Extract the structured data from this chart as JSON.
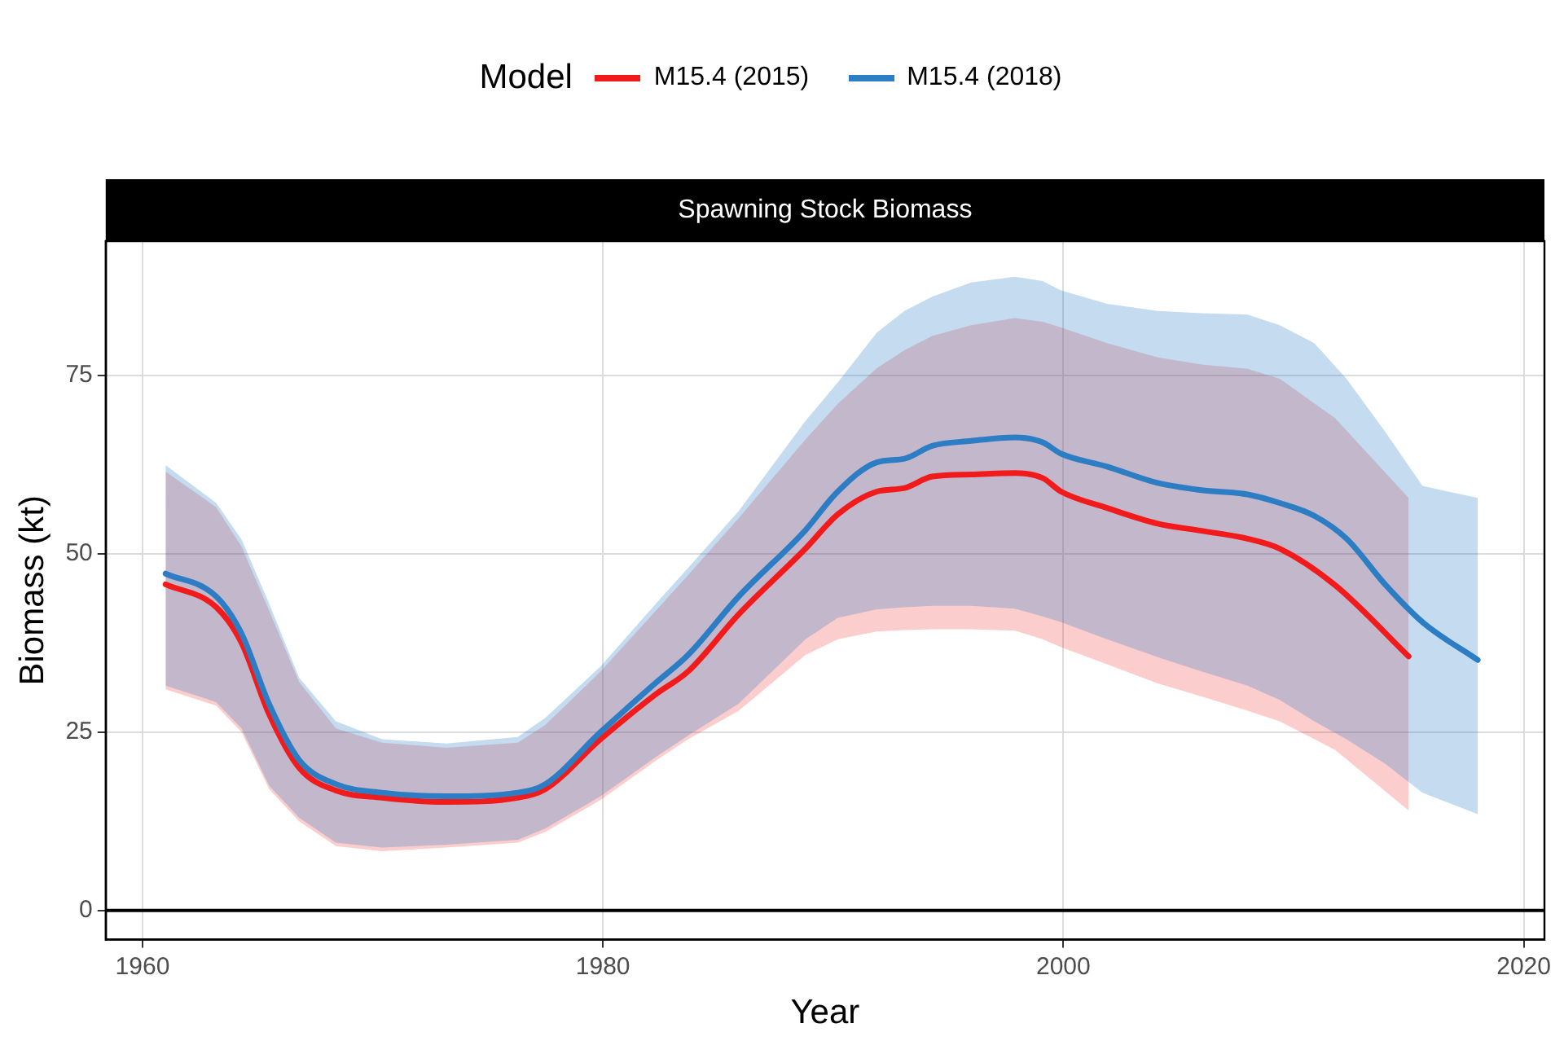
{
  "chart_data": {
    "type": "line",
    "title": "Spawning Stock Biomass",
    "xlabel": "Year",
    "ylabel": "Biomass (kt)",
    "legend_title": "Model",
    "legend": "top",
    "xlim": [
      1958.4,
      2020.9
    ],
    "xticks": [
      1960,
      1980,
      2000,
      2020
    ],
    "ylim": [
      -4.1,
      93.8
    ],
    "yticks": [
      0,
      25,
      50,
      75
    ],
    "grid": true,
    "marker": "none",
    "line_style": "solid",
    "ref_lines": [
      {
        "axis": "y",
        "value": 0,
        "color": "#000000"
      }
    ],
    "series": [
      {
        "name": "M15.4 (2015)",
        "color": "#f21b1b",
        "x": [
          1961,
          1963.2,
          1964.3,
          1965.5,
          1966.8,
          1968.4,
          1970.4,
          1973.2,
          1976.3,
          1977.5,
          1979.9,
          1982.3,
          1983.7,
          1985.9,
          1988.8,
          1990.2,
          1991.9,
          1993.1,
          1994.3,
          1996,
          1997.9,
          1999.1,
          1999.9,
          2001.9,
          2004.1,
          2006,
          2008,
          2009.4,
          2011.8,
          2015
        ],
        "values": [
          45.7,
          42.5,
          37.5,
          27.5,
          20,
          16.8,
          15.8,
          15.2,
          15.8,
          17,
          24,
          30.3,
          33.5,
          41.5,
          50.7,
          55.5,
          58.7,
          59.2,
          60.8,
          61.1,
          61.3,
          60.6,
          58.7,
          56.4,
          54.2,
          53.2,
          52.1,
          50.7,
          45.6,
          35.6
        ],
        "upper": [
          61.5,
          56.5,
          51,
          42,
          32,
          25.5,
          23.5,
          22.8,
          23.5,
          26,
          33.5,
          42,
          47,
          55,
          66,
          71,
          76,
          78.5,
          80.5,
          82,
          83,
          82.5,
          81.7,
          79.5,
          77.5,
          76.5,
          75.9,
          74.5,
          69,
          57.8
        ],
        "lower": [
          31,
          28.7,
          25,
          17,
          12.5,
          9,
          8.3,
          8.8,
          9.5,
          11,
          15.5,
          21,
          24,
          28,
          35.8,
          38,
          39.1,
          39.3,
          39.4,
          39.4,
          39.2,
          38,
          36.9,
          34.5,
          31.8,
          30,
          28,
          26.5,
          22.5,
          14
        ]
      },
      {
        "name": "M15.4 (2018)",
        "color": "#2d7dc4",
        "x": [
          1961,
          1963.2,
          1964.3,
          1965.5,
          1966.8,
          1968.4,
          1970.4,
          1973.2,
          1976.3,
          1977.5,
          1979.9,
          1982.3,
          1983.7,
          1985.9,
          1988.8,
          1990.2,
          1991.9,
          1993.1,
          1994.3,
          1996,
          1997.9,
          1999.1,
          1999.9,
          2001.9,
          2004.1,
          2006,
          2008,
          2009.4,
          2010.9,
          2012.3,
          2014,
          2015.6,
          2018
        ],
        "values": [
          47.2,
          44,
          38.8,
          28.9,
          21.1,
          17.7,
          16.5,
          16,
          16.5,
          17.7,
          25,
          31.9,
          35.8,
          44,
          53.3,
          58.7,
          62.8,
          63.3,
          65.1,
          65.8,
          66.3,
          65.6,
          64,
          62.2,
          59.9,
          58.9,
          58.3,
          57.1,
          55.3,
          52.1,
          45.6,
          40.4,
          35.1
        ],
        "upper": [
          62.4,
          57.1,
          52,
          43,
          32.6,
          26.5,
          24,
          23.4,
          24.3,
          27,
          34.2,
          43,
          48,
          56,
          68.6,
          74,
          81,
          84,
          86,
          88,
          88.8,
          88.2,
          86.9,
          85,
          84,
          83.7,
          83.5,
          82,
          79.5,
          74.5,
          67,
          59.5,
          57.8
        ],
        "lower": [
          31.5,
          29.2,
          25.5,
          17.5,
          13,
          9.5,
          8.8,
          9.2,
          9.9,
          11.5,
          16,
          21.5,
          24.5,
          29,
          38,
          41,
          42.2,
          42.5,
          42.7,
          42.7,
          42.3,
          41.2,
          40.4,
          38,
          35.5,
          33.5,
          31.5,
          29.5,
          26.5,
          24,
          20.5,
          16.5,
          13.5
        ]
      }
    ]
  }
}
